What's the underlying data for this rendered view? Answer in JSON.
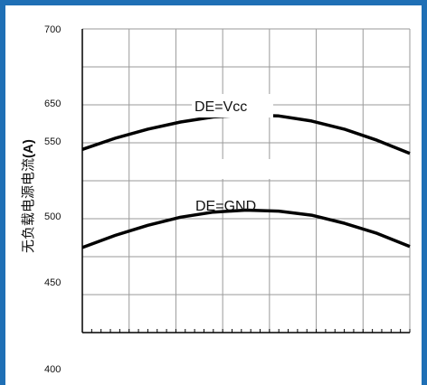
{
  "chart_data": {
    "type": "line",
    "ylabel_text": "无负载电源电流",
    "ylabel_unit": "(A)",
    "ytick_labels": [
      "700",
      "650",
      "550",
      "500",
      "450",
      "400"
    ],
    "x": [
      0,
      0.1,
      0.2,
      0.3,
      0.4,
      0.5,
      0.6,
      0.7,
      0.8,
      0.9,
      1.0
    ],
    "series": [
      {
        "name": "DE=Vcc",
        "values": [
          581,
          592,
          601,
          608,
          613,
          615,
          614,
          609,
          601,
          590,
          577
        ]
      },
      {
        "name": "DE=GND",
        "values": [
          484,
          496,
          506,
          514,
          519,
          521,
          520,
          516,
          508,
          498,
          485
        ]
      }
    ],
    "annotations": [
      "DE=Vcc",
      "DE=GND"
    ],
    "grid": true,
    "colors": {
      "frame": "#1f6fb5",
      "line": "#000000",
      "grid": "#9a9a9a"
    }
  }
}
